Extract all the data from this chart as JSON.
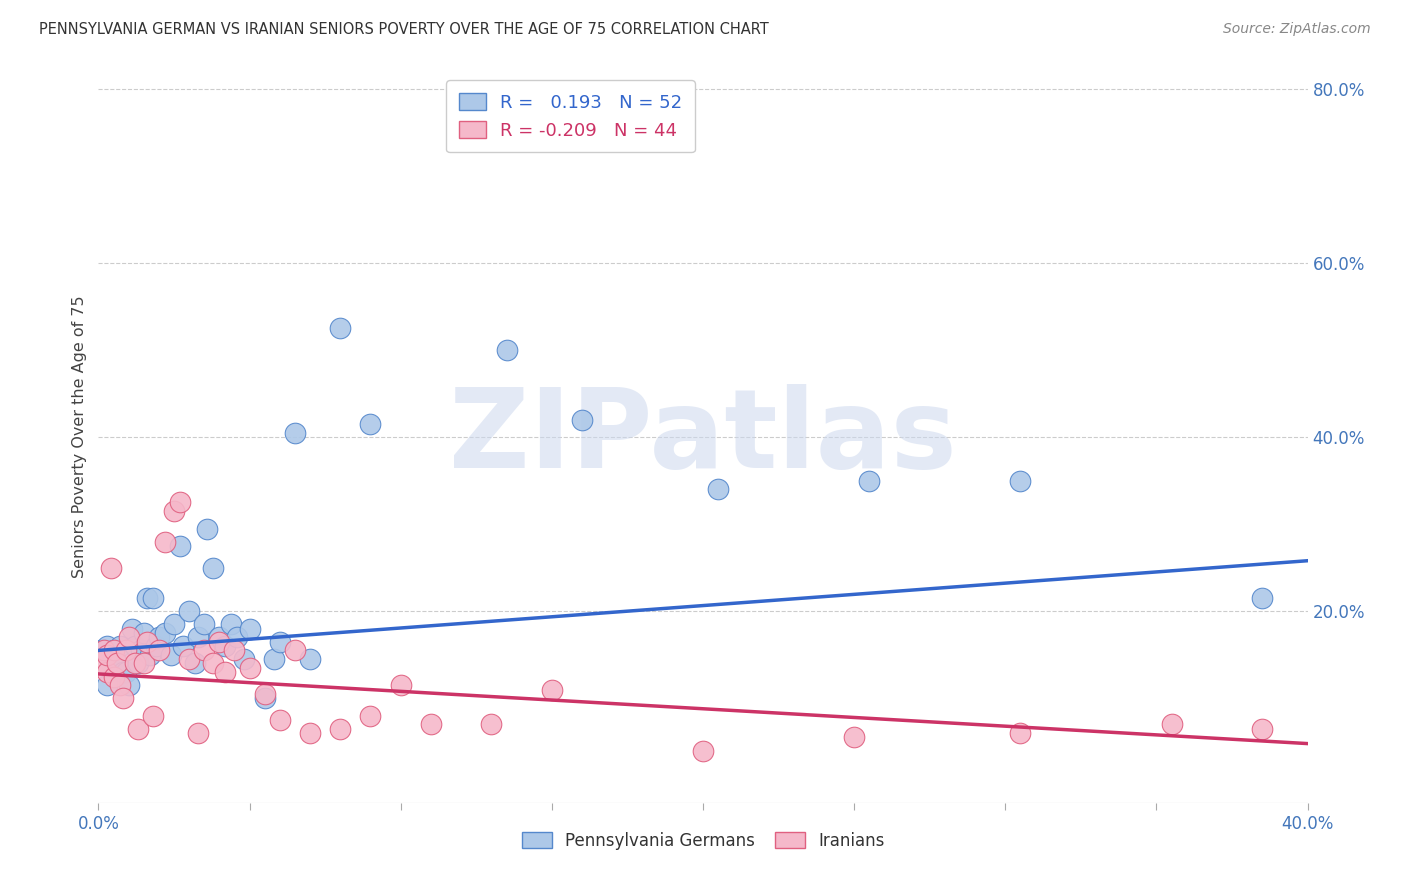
{
  "title": "PENNSYLVANIA GERMAN VS IRANIAN SENIORS POVERTY OVER THE AGE OF 75 CORRELATION CHART",
  "source": "Source: ZipAtlas.com",
  "ylabel": "Seniors Poverty Over the Age of 75",
  "xlabel": "",
  "xlim": [
    0.0,
    0.4
  ],
  "ylim": [
    -0.02,
    0.82
  ],
  "xticks": [
    0.0,
    0.05,
    0.1,
    0.15,
    0.2,
    0.25,
    0.3,
    0.35,
    0.4
  ],
  "yticks_right": [
    0.2,
    0.4,
    0.6,
    0.8
  ],
  "pg_R": 0.193,
  "pg_N": 52,
  "ir_R": -0.209,
  "ir_N": 44,
  "pg_color": "#adc8e8",
  "ir_color": "#f5b8ca",
  "pg_edge_color": "#5588cc",
  "ir_edge_color": "#e06080",
  "pg_line_color": "#3366cc",
  "ir_line_color": "#cc3366",
  "bg_color": "#ffffff",
  "grid_color": "#cccccc",
  "axis_color": "#4477bb",
  "watermark": "ZIPatlas",
  "pg_line_start_y": 0.155,
  "pg_line_end_y": 0.258,
  "ir_line_start_y": 0.128,
  "ir_line_end_y": 0.048,
  "pg_x": [
    0.001,
    0.002,
    0.003,
    0.003,
    0.004,
    0.005,
    0.005,
    0.006,
    0.007,
    0.008,
    0.009,
    0.01,
    0.011,
    0.012,
    0.013,
    0.014,
    0.015,
    0.016,
    0.017,
    0.018,
    0.019,
    0.02,
    0.022,
    0.024,
    0.025,
    0.027,
    0.028,
    0.03,
    0.032,
    0.033,
    0.035,
    0.036,
    0.038,
    0.04,
    0.042,
    0.044,
    0.046,
    0.048,
    0.05,
    0.055,
    0.058,
    0.06,
    0.065,
    0.07,
    0.08,
    0.09,
    0.135,
    0.16,
    0.205,
    0.255,
    0.305,
    0.385
  ],
  "pg_y": [
    0.155,
    0.155,
    0.115,
    0.16,
    0.14,
    0.155,
    0.155,
    0.14,
    0.16,
    0.13,
    0.13,
    0.115,
    0.18,
    0.16,
    0.14,
    0.155,
    0.175,
    0.215,
    0.15,
    0.215,
    0.16,
    0.17,
    0.175,
    0.15,
    0.185,
    0.275,
    0.16,
    0.2,
    0.14,
    0.17,
    0.185,
    0.295,
    0.25,
    0.17,
    0.16,
    0.185,
    0.17,
    0.145,
    0.18,
    0.1,
    0.145,
    0.165,
    0.405,
    0.145,
    0.525,
    0.415,
    0.5,
    0.42,
    0.34,
    0.35,
    0.35,
    0.215
  ],
  "ir_x": [
    0.001,
    0.002,
    0.003,
    0.003,
    0.004,
    0.005,
    0.005,
    0.006,
    0.007,
    0.008,
    0.009,
    0.01,
    0.012,
    0.013,
    0.015,
    0.016,
    0.018,
    0.02,
    0.022,
    0.025,
    0.027,
    0.03,
    0.033,
    0.035,
    0.038,
    0.04,
    0.042,
    0.045,
    0.05,
    0.055,
    0.06,
    0.065,
    0.07,
    0.08,
    0.09,
    0.1,
    0.11,
    0.13,
    0.15,
    0.2,
    0.25,
    0.305,
    0.355,
    0.385
  ],
  "ir_y": [
    0.14,
    0.155,
    0.13,
    0.15,
    0.25,
    0.125,
    0.155,
    0.14,
    0.115,
    0.1,
    0.155,
    0.17,
    0.14,
    0.065,
    0.14,
    0.165,
    0.08,
    0.155,
    0.28,
    0.315,
    0.325,
    0.145,
    0.06,
    0.155,
    0.14,
    0.165,
    0.13,
    0.155,
    0.135,
    0.105,
    0.075,
    0.155,
    0.06,
    0.065,
    0.08,
    0.115,
    0.07,
    0.07,
    0.11,
    0.04,
    0.055,
    0.06,
    0.07,
    0.065
  ]
}
